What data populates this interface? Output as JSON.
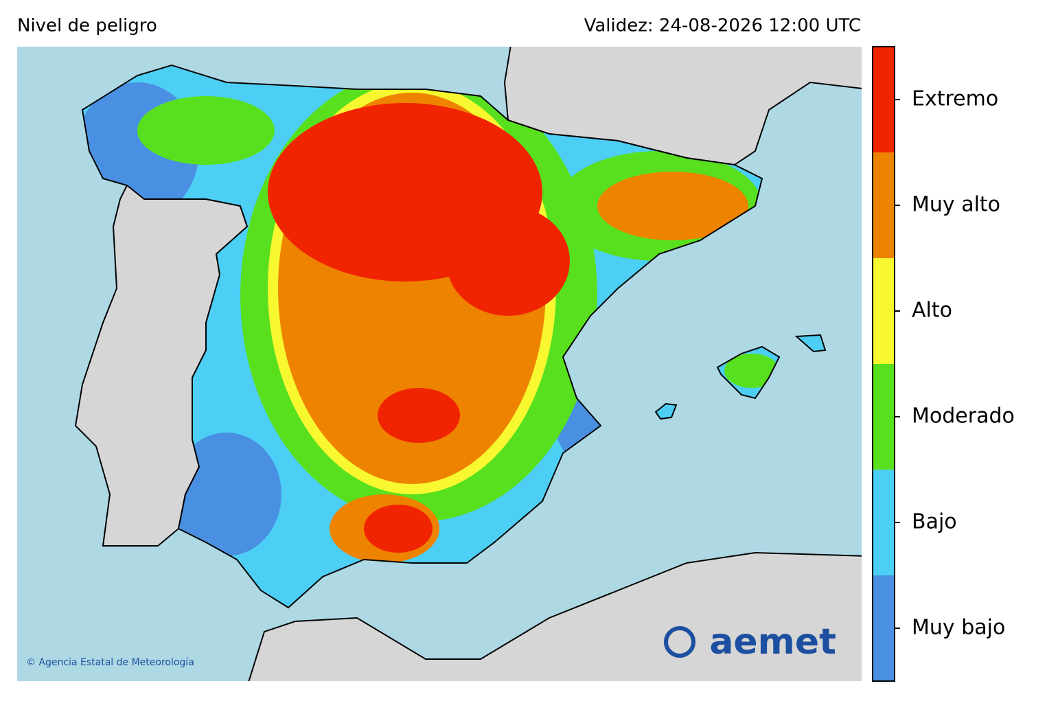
{
  "header": {
    "title": "Nivel de peligro",
    "validity": "Validez: 24-08-2026 12:00 UTC"
  },
  "legend": {
    "levels": [
      {
        "label": "Muy bajo",
        "color": "#4a90e2"
      },
      {
        "label": "Bajo",
        "color": "#4dcff5"
      },
      {
        "label": "Moderado",
        "color": "#58e01e"
      },
      {
        "label": "Alto",
        "color": "#f8f830"
      },
      {
        "label": "Muy alto",
        "color": "#ee8300"
      },
      {
        "label": "Extremo",
        "color": "#f02400"
      }
    ]
  },
  "credit": "© Agencia Estatal de Meteorología",
  "logo": "aemet"
}
